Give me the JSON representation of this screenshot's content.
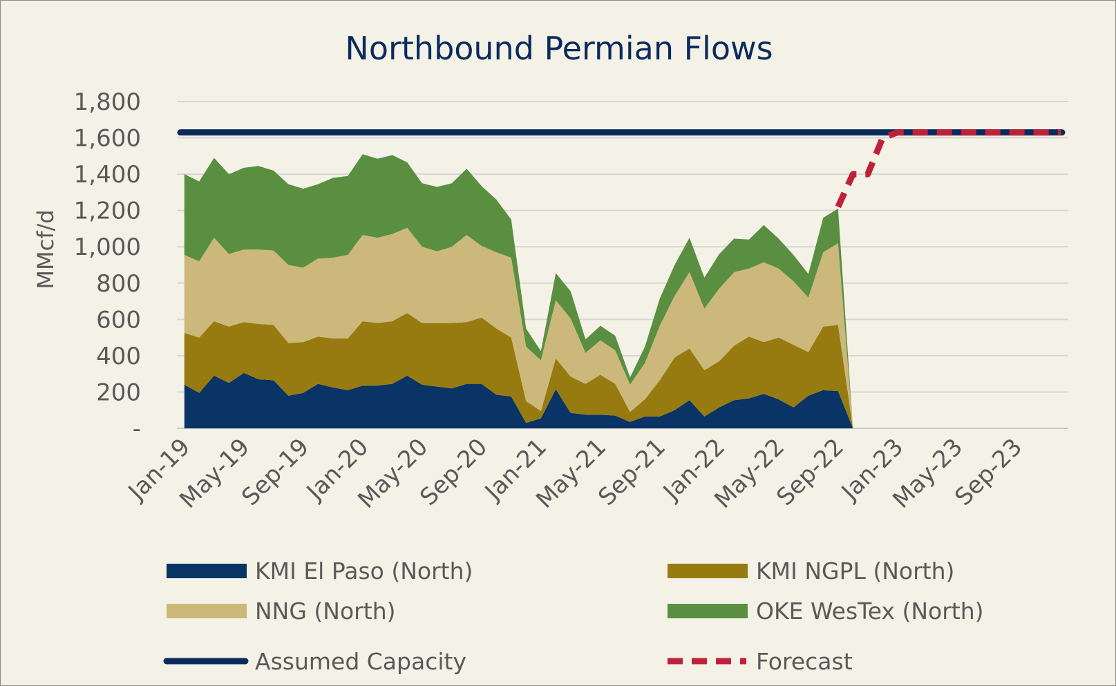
{
  "chart_data": {
    "type": "area",
    "title": "Northbound Permian Flows",
    "ylabel": "MMcf/d",
    "xlabel": "",
    "ylim": [
      0,
      1800
    ],
    "yticks": [
      "-",
      "200",
      "400",
      "600",
      "800",
      "1,000",
      "1,200",
      "1,400",
      "1,600",
      "1,800"
    ],
    "ytick_values": [
      0,
      200,
      400,
      600,
      800,
      1000,
      1200,
      1400,
      1600,
      1800
    ],
    "x_categories": [
      "Jan-19",
      "Feb-19",
      "Mar-19",
      "Apr-19",
      "May-19",
      "Jun-19",
      "Jul-19",
      "Aug-19",
      "Sep-19",
      "Oct-19",
      "Nov-19",
      "Dec-19",
      "Jan-20",
      "Feb-20",
      "Mar-20",
      "Apr-20",
      "May-20",
      "Jun-20",
      "Jul-20",
      "Aug-20",
      "Sep-20",
      "Oct-20",
      "Nov-20",
      "Dec-20",
      "Jan-21",
      "Feb-21",
      "Mar-21",
      "Apr-21",
      "May-21",
      "Jun-21",
      "Jul-21",
      "Aug-21",
      "Sep-21",
      "Oct-21",
      "Nov-21",
      "Dec-21",
      "Jan-22",
      "Feb-22",
      "Mar-22",
      "Apr-22",
      "May-22",
      "Jun-22",
      "Jul-22",
      "Aug-22",
      "Sep-22",
      "Oct-22",
      "Nov-22",
      "Dec-22",
      "Jan-23",
      "Feb-23",
      "Mar-23",
      "Apr-23",
      "May-23",
      "Jun-23",
      "Jul-23",
      "Aug-23",
      "Sep-23",
      "Oct-23",
      "Nov-23",
      "Dec-23"
    ],
    "x_tick_labels": [
      "Jan-19",
      "May-19",
      "Sep-19",
      "Jan-20",
      "May-20",
      "Sep-20",
      "Jan-21",
      "May-21",
      "Sep-21",
      "Jan-22",
      "May-22",
      "Sep-22",
      "Jan-23",
      "May-23",
      "Sep-23"
    ],
    "grid": true,
    "legend_position": "bottom",
    "series": [
      {
        "name": "KMI El Paso (North)",
        "kind": "area",
        "color": "#0a3366",
        "values": [
          240,
          195,
          290,
          250,
          305,
          270,
          265,
          180,
          195,
          245,
          225,
          210,
          235,
          235,
          245,
          290,
          240,
          230,
          220,
          245,
          245,
          185,
          175,
          30,
          55,
          215,
          85,
          75,
          75,
          70,
          35,
          65,
          65,
          100,
          155,
          65,
          115,
          155,
          165,
          190,
          160,
          115,
          180,
          210,
          205,
          0
        ]
      },
      {
        "name": "KMI NGPL (North)",
        "kind": "area",
        "color": "#977b10",
        "values": [
          285,
          305,
          300,
          310,
          280,
          305,
          305,
          290,
          280,
          260,
          270,
          285,
          355,
          345,
          345,
          345,
          340,
          350,
          360,
          340,
          365,
          365,
          325,
          120,
          40,
          170,
          200,
          170,
          220,
          175,
          55,
          95,
          200,
          290,
          285,
          255,
          255,
          300,
          340,
          285,
          340,
          345,
          240,
          350,
          365,
          0
        ]
      },
      {
        "name": "NNG (North)",
        "kind": "area",
        "color": "#cbb87a",
        "values": [
          430,
          420,
          460,
          400,
          400,
          410,
          410,
          430,
          410,
          430,
          445,
          460,
          475,
          470,
          480,
          470,
          420,
          395,
          420,
          480,
          395,
          420,
          440,
          300,
          280,
          320,
          320,
          170,
          190,
          185,
          150,
          200,
          300,
          340,
          420,
          340,
          400,
          405,
          375,
          440,
          380,
          350,
          300,
          410,
          450,
          0
        ]
      },
      {
        "name": "OKE WesTex (North)",
        "kind": "area",
        "color": "#5a8f42",
        "values": [
          445,
          440,
          440,
          440,
          450,
          460,
          440,
          445,
          435,
          410,
          440,
          435,
          445,
          435,
          435,
          360,
          350,
          355,
          350,
          365,
          330,
          290,
          210,
          100,
          50,
          150,
          150,
          75,
          80,
          80,
          40,
          90,
          150,
          170,
          190,
          170,
          190,
          185,
          160,
          205,
          165,
          145,
          130,
          190,
          190,
          0
        ]
      },
      {
        "name": "Assumed Capacity",
        "kind": "line",
        "color": "#0a2a5c",
        "values": [
          1630,
          1630
        ]
      },
      {
        "name": "Forecast",
        "kind": "dashed-line",
        "color": "#c0213a",
        "values": [
          1220,
          1400,
          1400,
          1600,
          1630,
          1630,
          1630,
          1630,
          1630,
          1630,
          1630,
          1630,
          1630,
          1630,
          1630,
          1630
        ]
      }
    ]
  }
}
